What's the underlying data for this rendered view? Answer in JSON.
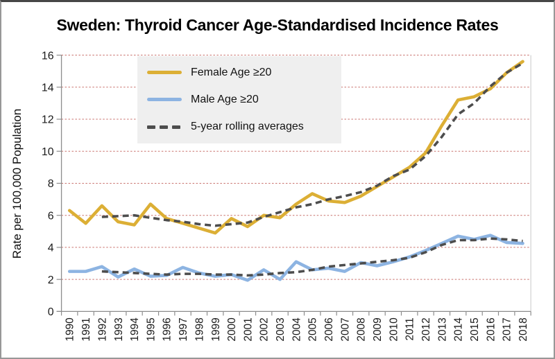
{
  "chart_data": {
    "type": "line",
    "title": "Sweden: Thyroid Cancer Age-Standardised Incidence Rates",
    "xlabel": "",
    "ylabel": "Rate per 100,000 Population",
    "ylim": [
      0,
      16
    ],
    "yticks": [
      0,
      2,
      4,
      6,
      8,
      10,
      12,
      14,
      16
    ],
    "grid": "horizontal-dashed",
    "legend_position": "upper-left-inside",
    "categories": [
      1990,
      1991,
      1992,
      1993,
      1994,
      1995,
      1996,
      1997,
      1998,
      1999,
      2000,
      2001,
      2002,
      2003,
      2004,
      2005,
      2006,
      2007,
      2008,
      2009,
      2010,
      2011,
      2012,
      2013,
      2014,
      2015,
      2016,
      2017,
      2018
    ],
    "series": [
      {
        "name": "Female Age ≥20",
        "style": "solid",
        "color": "#DCAF35",
        "values": [
          6.3,
          5.5,
          6.6,
          5.6,
          5.4,
          6.7,
          5.8,
          5.5,
          5.2,
          4.9,
          5.8,
          5.3,
          6.0,
          5.85,
          6.7,
          7.35,
          6.9,
          6.8,
          7.2,
          7.8,
          8.4,
          9.0,
          9.9,
          11.6,
          13.2,
          13.4,
          13.9,
          14.9,
          15.6
        ]
      },
      {
        "name": "Male Age ≥20",
        "style": "solid",
        "color": "#8DB4E2",
        "values": [
          2.5,
          2.5,
          2.8,
          2.15,
          2.65,
          2.2,
          2.25,
          2.75,
          2.4,
          2.2,
          2.3,
          1.95,
          2.6,
          2.0,
          3.1,
          2.6,
          2.7,
          2.5,
          3.05,
          2.85,
          3.1,
          3.4,
          3.8,
          4.25,
          4.7,
          4.5,
          4.75,
          4.3,
          4.25
        ]
      },
      {
        "name": "5-year rolling average (female)",
        "style": "dashed",
        "color": "#4D4D4D",
        "start_year": 1992,
        "values": [
          5.9,
          5.95,
          6.0,
          5.85,
          5.7,
          5.6,
          5.45,
          5.35,
          5.45,
          5.55,
          5.9,
          6.2,
          6.5,
          6.7,
          7.0,
          7.2,
          7.45,
          7.85,
          8.45,
          8.85,
          9.7,
          10.9,
          12.3,
          13.0,
          14.05,
          14.9,
          15.5
        ]
      },
      {
        "name": "5-year rolling average (male)",
        "style": "dashed",
        "color": "#4D4D4D",
        "start_year": 1992,
        "values": [
          2.5,
          2.45,
          2.4,
          2.35,
          2.3,
          2.35,
          2.35,
          2.3,
          2.3,
          2.25,
          2.3,
          2.4,
          2.45,
          2.6,
          2.8,
          2.9,
          3.0,
          3.1,
          3.2,
          3.35,
          3.7,
          4.15,
          4.45,
          4.45,
          4.55,
          4.5,
          4.4
        ]
      }
    ],
    "legend": [
      {
        "label": "Female Age ≥20",
        "swatch": "solid-gold"
      },
      {
        "label": "Male Age ≥20",
        "swatch": "solid-blue"
      },
      {
        "label": "5-year rolling averages",
        "swatch": "dashed-gray"
      }
    ],
    "colors": {
      "female_line": "#DCAF35",
      "male_line": "#8DB4E2",
      "rolling_line": "#4D4D4D",
      "gridline": "#C4625D",
      "axis": "#8C8C8C",
      "plot_right_border": "#D4D4D4",
      "tick_label": "#1A1A1A",
      "legend_background": "#EFEFEF"
    }
  }
}
